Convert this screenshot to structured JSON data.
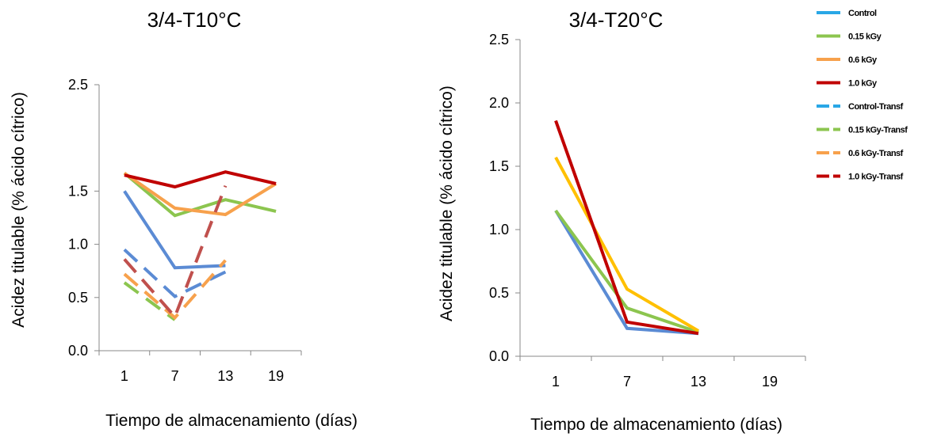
{
  "legend": [
    {
      "name": "Control",
      "color": "#29a7e6",
      "dashed": false
    },
    {
      "name": "0.15 kGy",
      "color": "#8cc54f",
      "dashed": false
    },
    {
      "name": "0.6 kGy",
      "color": "#f7a14c",
      "dashed": false
    },
    {
      "name": "1.0 kGy",
      "color": "#c00000",
      "dashed": false
    },
    {
      "name": "Control-Transf",
      "color": "#29a7e6",
      "dashed": true
    },
    {
      "name": "0.15 kGy-Transf",
      "color": "#8cc54f",
      "dashed": true
    },
    {
      "name": "0.6 kGy-Transf",
      "color": "#f7a14c",
      "dashed": true
    },
    {
      "name": "1.0 kGy-Transf",
      "color": "#c00000",
      "dashed": true
    }
  ],
  "chart_data": [
    {
      "type": "line",
      "title": "3/4-T10°C",
      "xlabel": "Tiempo de almacenamiento (días)",
      "ylabel": "Acidez titulable (% ácido cítrico)",
      "categories": [
        "1",
        "7",
        "13",
        "19"
      ],
      "yticks": [
        "0.0",
        "0.5",
        "1.0",
        "1.5",
        "2.5"
      ],
      "ytick_values": [
        0,
        0.5,
        1.0,
        1.5,
        2.5
      ],
      "ylim": [
        0,
        2.5
      ],
      "legend_position": "right",
      "series": [
        {
          "name": "Control",
          "color": "#5b8bd4",
          "dashed": false,
          "values": [
            1.5,
            0.78,
            0.8,
            null
          ]
        },
        {
          "name": "0.15 kGy",
          "color": "#8cc54f",
          "dashed": false,
          "values": [
            1.67,
            1.27,
            1.42,
            1.31
          ]
        },
        {
          "name": "0.6 kGy",
          "color": "#f7a14c",
          "dashed": false,
          "values": [
            1.67,
            1.34,
            1.28,
            1.57
          ]
        },
        {
          "name": "1.0 kGy",
          "color": "#c00000",
          "dashed": false,
          "values": [
            1.65,
            1.54,
            1.68,
            1.57
          ]
        },
        {
          "name": "Control-Transf",
          "color": "#5b8bd4",
          "dashed": true,
          "values": [
            0.95,
            0.51,
            0.74,
            null
          ]
        },
        {
          "name": "0.15 kGy-Transf",
          "color": "#8cc54f",
          "dashed": true,
          "values": [
            0.64,
            0.29,
            null,
            null
          ]
        },
        {
          "name": "0.6 kGy-Transf",
          "color": "#f7a14c",
          "dashed": true,
          "values": [
            0.72,
            0.31,
            0.85,
            null
          ]
        },
        {
          "name": "1.0 kGy-Transf",
          "color": "#c0504d",
          "dashed": true,
          "values": [
            0.86,
            0.32,
            1.55,
            null
          ]
        }
      ]
    },
    {
      "type": "line",
      "title": "3/4-T20°C",
      "xlabel": "Tiempo de almacenamiento (días)",
      "ylabel": "Acidez titulable (% ácido cítrico)",
      "categories": [
        "1",
        "7",
        "13",
        "19"
      ],
      "yticks": [
        "0.0",
        "0.5",
        "1.0",
        "1.5",
        "2.0",
        "2.5"
      ],
      "ytick_values": [
        0,
        0.5,
        1.0,
        1.5,
        2.0,
        2.5
      ],
      "ylim": [
        0,
        2.5
      ],
      "legend_position": "right",
      "series": [
        {
          "name": "Control",
          "color": "#5b8bd4",
          "dashed": false,
          "values": [
            1.15,
            0.22,
            0.18,
            null
          ]
        },
        {
          "name": "0.15 kGy",
          "color": "#8cc54f",
          "dashed": false,
          "values": [
            1.15,
            0.38,
            0.19,
            null
          ]
        },
        {
          "name": "0.6 kGy",
          "color": "#ffc000",
          "dashed": false,
          "values": [
            1.57,
            0.53,
            0.2,
            null
          ]
        },
        {
          "name": "1.0 kGy",
          "color": "#c00000",
          "dashed": false,
          "values": [
            1.86,
            0.27,
            0.18,
            null
          ]
        }
      ]
    }
  ]
}
